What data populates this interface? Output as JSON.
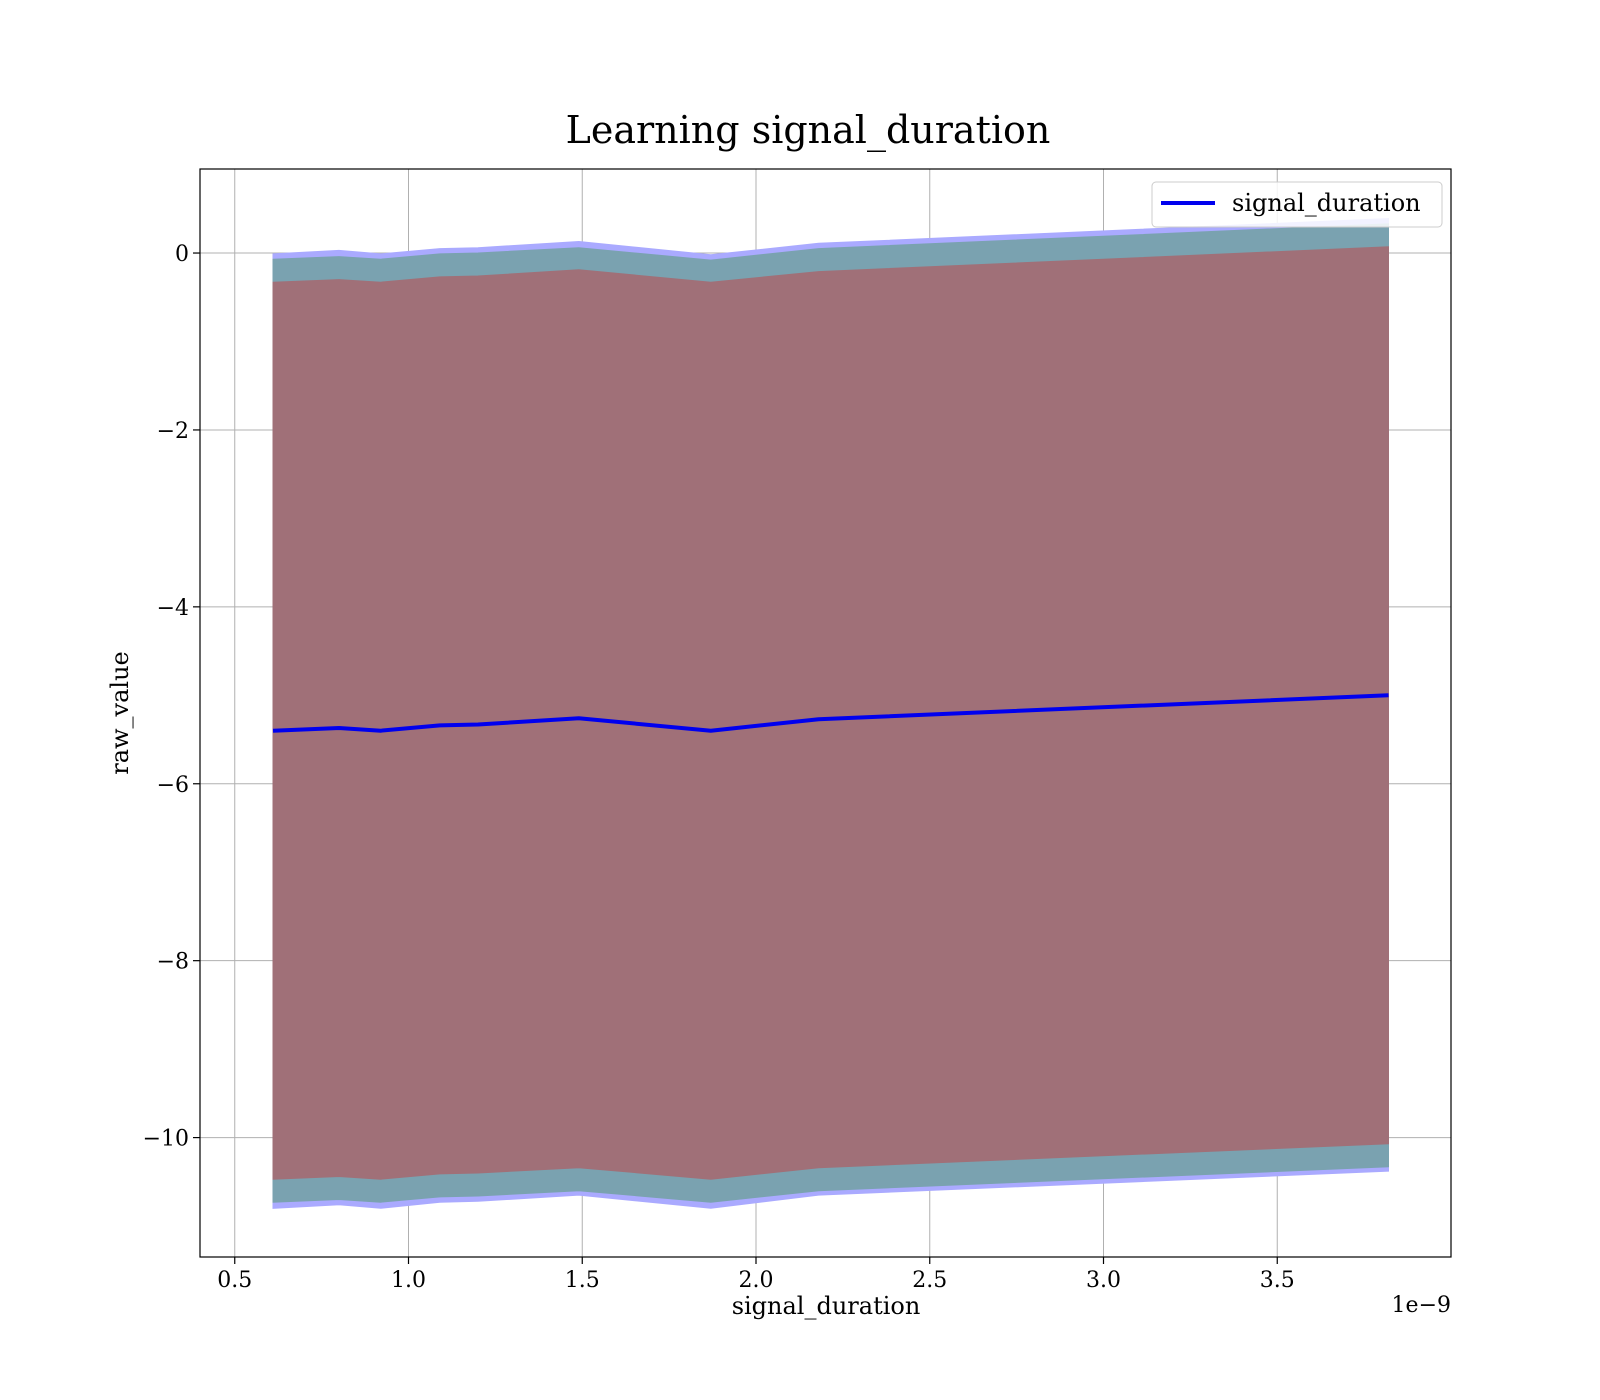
{
  "chart_data": {
    "type": "area",
    "title": "Learning signal_duration",
    "xlabel": "signal_duration",
    "ylabel": "raw_value",
    "x_offset_label": "1e−9",
    "xlim": [
      0.4,
      4.0
    ],
    "ylim": [
      -11.35,
      0.95
    ],
    "x_ticks": [
      0.5,
      1.0,
      1.5,
      2.0,
      2.5,
      3.0,
      3.5
    ],
    "x_tick_labels": [
      "0.5",
      "1.0",
      "1.5",
      "2.0",
      "2.5",
      "3.0",
      "3.5"
    ],
    "y_ticks": [
      0,
      -2,
      -4,
      -6,
      -8,
      -10
    ],
    "y_tick_labels": [
      "0",
      "−2",
      "−4",
      "−6",
      "−8",
      "−10"
    ],
    "grid": true,
    "legend_position": "top-right",
    "x": [
      0.61,
      0.8,
      0.92,
      1.09,
      1.2,
      1.49,
      1.87,
      2.18,
      3.82
    ],
    "series": [
      {
        "name": "signal_duration",
        "color": "#0000ee",
        "values": [
          -5.4,
          -5.37,
          -5.4,
          -5.34,
          -5.33,
          -5.26,
          -5.4,
          -5.27,
          -5.0
        ]
      }
    ],
    "bands": [
      {
        "color": "#aaaaff",
        "lower": [
          -10.8,
          -10.76,
          -10.8,
          -10.73,
          -10.72,
          -10.65,
          -10.8,
          -10.65,
          -10.38
        ],
        "upper": [
          -0.01,
          0.03,
          -0.01,
          0.05,
          0.06,
          0.13,
          -0.02,
          0.11,
          0.39
        ]
      },
      {
        "color": "#7aa2b0",
        "lower": [
          -10.73,
          -10.7,
          -10.73,
          -10.67,
          -10.66,
          -10.6,
          -10.73,
          -10.6,
          -10.33
        ],
        "upper": [
          -0.07,
          -0.04,
          -0.07,
          -0.01,
          0.0,
          0.06,
          -0.08,
          0.05,
          0.33
        ]
      },
      {
        "color": "#a07078",
        "lower": [
          -10.47,
          -10.44,
          -10.47,
          -10.41,
          -10.4,
          -10.34,
          -10.47,
          -10.34,
          -10.07
        ],
        "upper": [
          -0.33,
          -0.3,
          -0.33,
          -0.27,
          -0.26,
          -0.19,
          -0.33,
          -0.21,
          0.07
        ]
      }
    ]
  }
}
